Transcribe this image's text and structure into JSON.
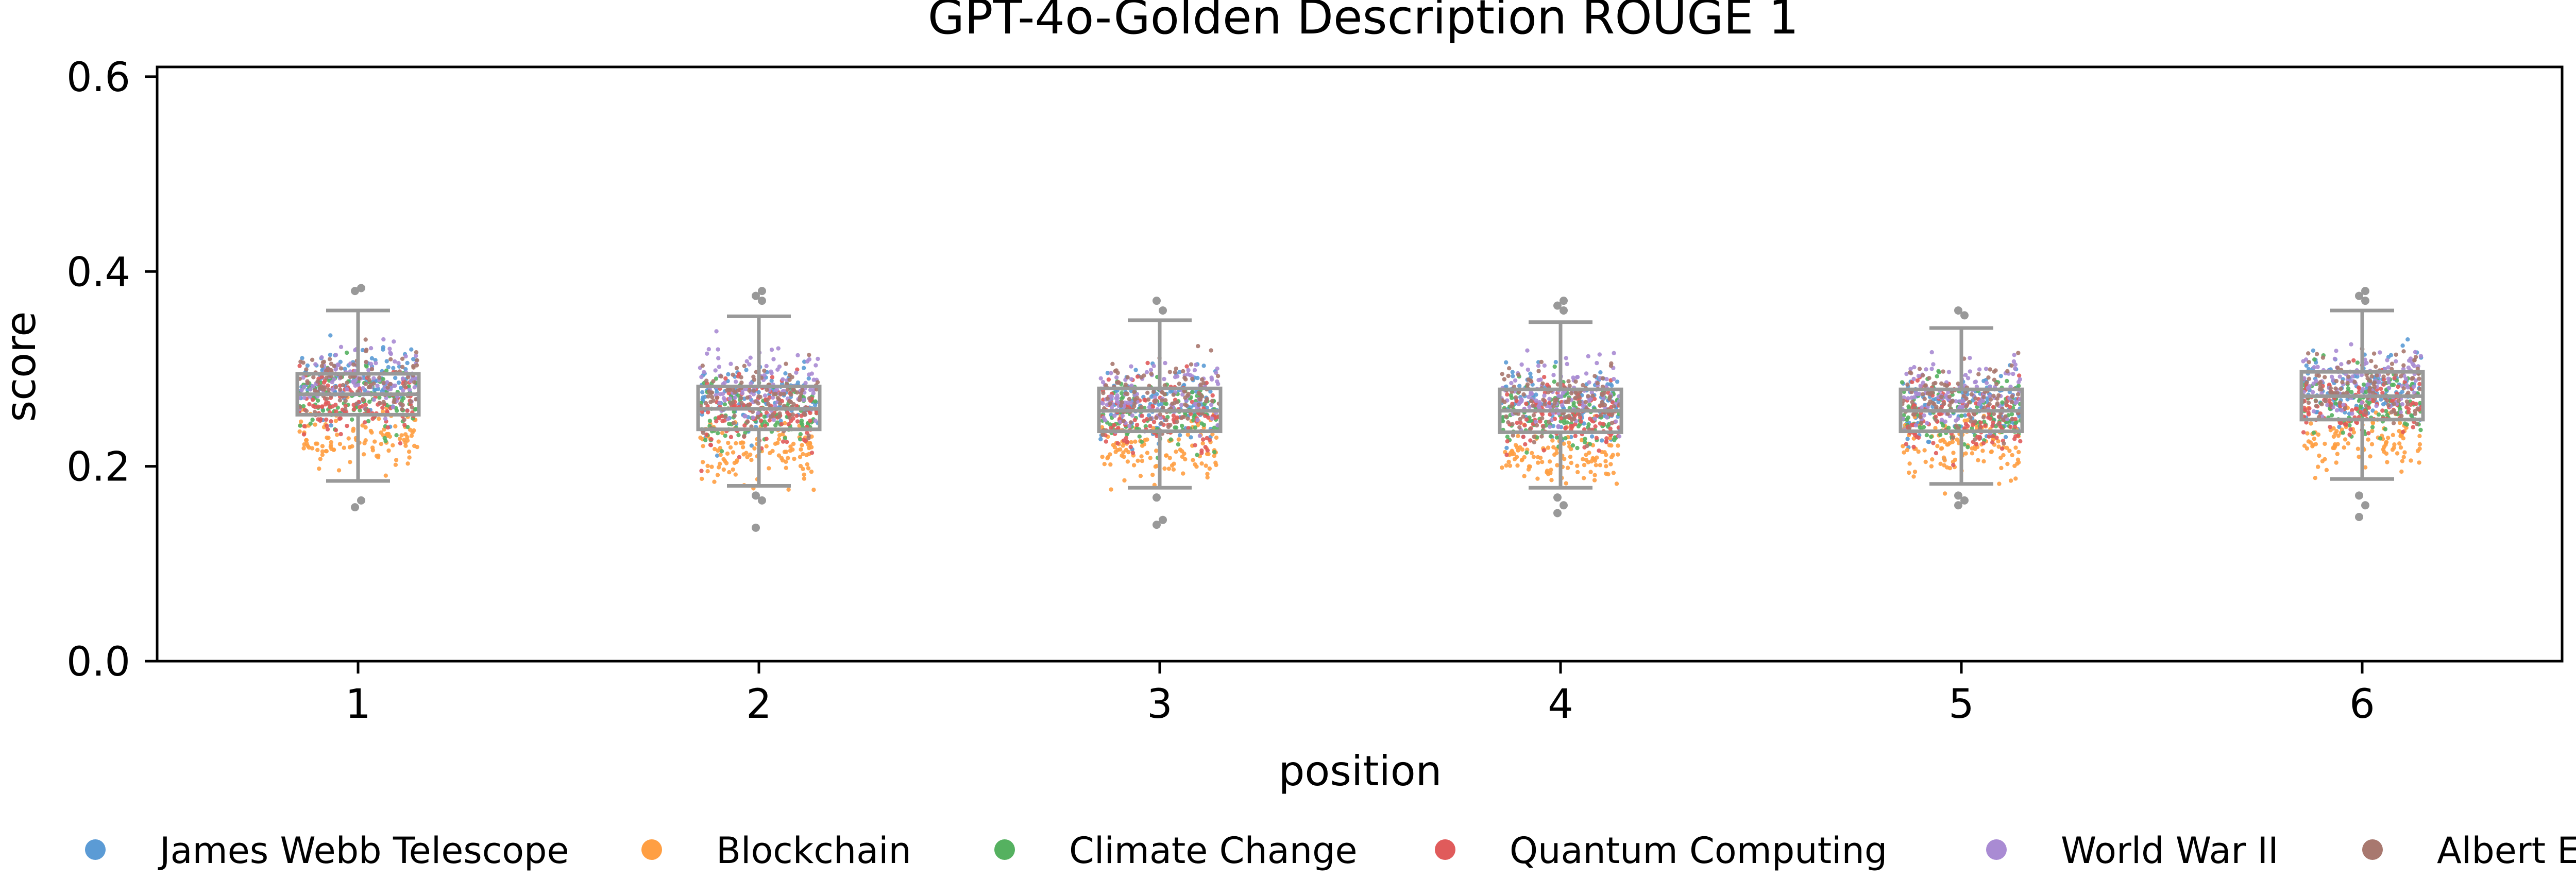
{
  "chart_data": {
    "type": "box+strip",
    "title": "GPT-4o-Golden Description ROUGE 1",
    "xlabel": "position",
    "ylabel": "score",
    "categories": [
      "1",
      "2",
      "3",
      "4",
      "5",
      "6"
    ],
    "ylim": [
      0.0,
      0.61
    ],
    "yticks": [
      0.0,
      0.2,
      0.4,
      0.6
    ],
    "ytick_labels": [
      "0.0",
      "0.2",
      "0.4",
      "0.6"
    ],
    "grid": false,
    "legend_position": "bottom",
    "box_color": "#999999",
    "boxes": [
      {
        "position": "1",
        "q1": 0.253,
        "median": 0.274,
        "q3": 0.295,
        "whisker_low": 0.185,
        "whisker_high": 0.36
      },
      {
        "position": "2",
        "q1": 0.238,
        "median": 0.259,
        "q3": 0.282,
        "whisker_low": 0.18,
        "whisker_high": 0.354
      },
      {
        "position": "3",
        "q1": 0.236,
        "median": 0.257,
        "q3": 0.28,
        "whisker_low": 0.178,
        "whisker_high": 0.35
      },
      {
        "position": "4",
        "q1": 0.235,
        "median": 0.257,
        "q3": 0.279,
        "whisker_low": 0.178,
        "whisker_high": 0.348
      },
      {
        "position": "5",
        "q1": 0.236,
        "median": 0.257,
        "q3": 0.279,
        "whisker_low": 0.182,
        "whisker_high": 0.342
      },
      {
        "position": "6",
        "q1": 0.248,
        "median": 0.272,
        "q3": 0.297,
        "whisker_low": 0.187,
        "whisker_high": 0.36
      }
    ],
    "outliers": [
      {
        "position": "1",
        "values": [
          0.158,
          0.165,
          0.38,
          0.383
        ]
      },
      {
        "position": "2",
        "values": [
          0.137,
          0.165,
          0.17,
          0.37,
          0.375,
          0.38
        ]
      },
      {
        "position": "3",
        "values": [
          0.14,
          0.145,
          0.168,
          0.36,
          0.37
        ]
      },
      {
        "position": "4",
        "values": [
          0.152,
          0.16,
          0.168,
          0.36,
          0.365,
          0.37
        ]
      },
      {
        "position": "5",
        "values": [
          0.16,
          0.165,
          0.17,
          0.355,
          0.36
        ]
      },
      {
        "position": "6",
        "values": [
          0.148,
          0.16,
          0.17,
          0.37,
          0.375,
          0.38
        ]
      }
    ],
    "series": [
      {
        "name": "James Webb Telescope",
        "color": "#5b9bd5",
        "center_by_position": [
          0.285,
          0.27,
          0.265,
          0.265,
          0.262,
          0.28
        ],
        "spread": 0.032
      },
      {
        "name": "Blockchain",
        "color": "#ff9f43",
        "center_by_position": [
          0.23,
          0.215,
          0.215,
          0.212,
          0.218,
          0.228
        ],
        "spread": 0.025
      },
      {
        "name": "Climate Change",
        "color": "#55b160",
        "center_by_position": [
          0.27,
          0.255,
          0.255,
          0.255,
          0.255,
          0.268
        ],
        "spread": 0.028
      },
      {
        "name": "Quantum Computing",
        "color": "#e05b5b",
        "center_by_position": [
          0.265,
          0.255,
          0.252,
          0.252,
          0.252,
          0.265
        ],
        "spread": 0.03
      },
      {
        "name": "World War II",
        "color": "#a98bd3",
        "center_by_position": [
          0.29,
          0.28,
          0.275,
          0.275,
          0.275,
          0.29
        ],
        "spread": 0.03
      },
      {
        "name": "Albert Einstein",
        "color": "#a8786f",
        "center_by_position": [
          0.285,
          0.272,
          0.27,
          0.268,
          0.268,
          0.285
        ],
        "spread": 0.03
      }
    ]
  }
}
